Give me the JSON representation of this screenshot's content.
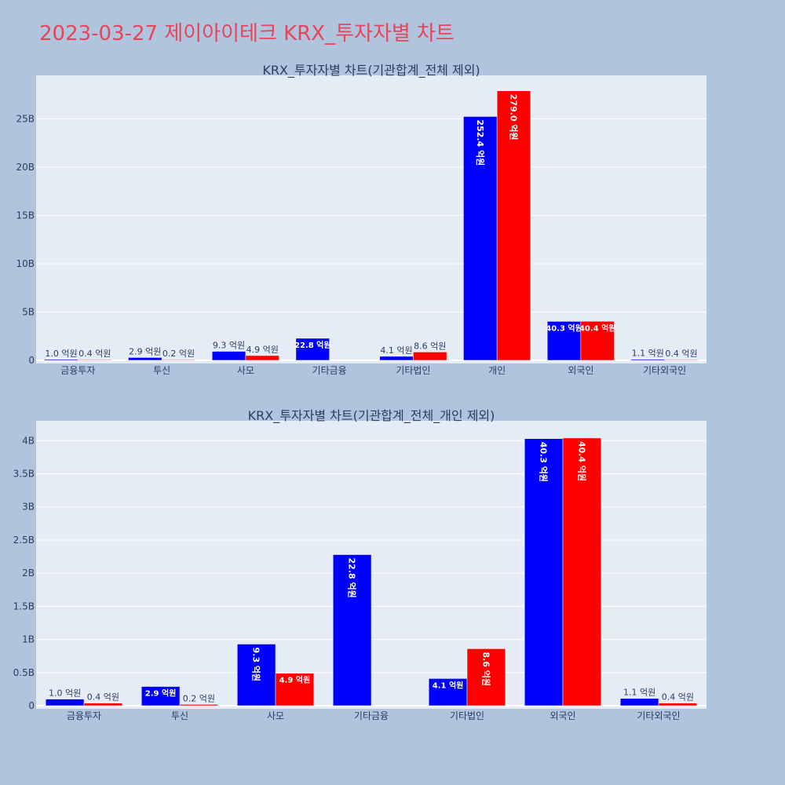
{
  "page": {
    "title": "2023-03-27 제이아이테크 KRX_투자자별 차트"
  },
  "colors": {
    "series_a": "#0000ff",
    "series_b": "#ff0000",
    "plot_bg": "#e5ecf6",
    "page_bg": "#b0c4de",
    "title": "#e8455a"
  },
  "chart_data": [
    {
      "type": "bar",
      "title": "KRX_투자자별 차트(기관합계_전체 제외)",
      "categories": [
        "금융투자",
        "투신",
        "사모",
        "기타금융",
        "기타법인",
        "개인",
        "외국인",
        "기타외국인"
      ],
      "series": [
        {
          "values": [
            100000000,
            290000000,
            930000000,
            2280000000,
            410000000,
            25240000000,
            4030000000,
            110000000
          ],
          "labels": [
            "1.0 억원",
            "2.9 억원",
            "9.3 억원",
            "22.8 억원",
            "4.1 억원",
            "252.4 억원",
            "40.3 억원",
            "1.1 억원"
          ]
        },
        {
          "values": [
            40000000,
            20000000,
            490000000,
            null,
            860000000,
            27900000000,
            4040000000,
            40000000
          ],
          "labels": [
            "0.4 억원",
            "0.2 억원",
            "4.9 억원",
            "",
            "8.6 억원",
            "279.0 억원",
            "40.4 억원",
            "0.4 억원"
          ]
        }
      ],
      "ylim": [
        0,
        29500000000
      ],
      "yticks": [
        0,
        5000000000,
        10000000000,
        15000000000,
        20000000000,
        25000000000
      ],
      "yticklabels": [
        "0",
        "5B",
        "10B",
        "15B",
        "20B",
        "25B"
      ],
      "grid": true
    },
    {
      "type": "bar",
      "title": "KRX_투자자별 차트(기관합계_전체_개인 제외)",
      "categories": [
        "금융투자",
        "투신",
        "사모",
        "기타금융",
        "기타법인",
        "외국인",
        "기타외국인"
      ],
      "series": [
        {
          "values": [
            100000000,
            290000000,
            930000000,
            2280000000,
            410000000,
            4030000000,
            110000000
          ],
          "labels": [
            "1.0 억원",
            "2.9 억원",
            "9.3 억원",
            "22.8 억원",
            "4.1 억원",
            "40.3 억원",
            "1.1 억원"
          ]
        },
        {
          "values": [
            40000000,
            20000000,
            490000000,
            null,
            860000000,
            4040000000,
            40000000
          ],
          "labels": [
            "0.4 억원",
            "0.2 억원",
            "4.9 억원",
            "",
            "8.6 억원",
            "40.4 억원",
            "0.4 억원"
          ]
        }
      ],
      "ylim": [
        0,
        4300000000
      ],
      "yticks": [
        0,
        500000000,
        1000000000,
        1500000000,
        2000000000,
        2500000000,
        3000000000,
        3500000000,
        4000000000
      ],
      "yticklabels": [
        "0",
        "0.5B",
        "1B",
        "1.5B",
        "2B",
        "2.5B",
        "3B",
        "3.5B",
        "4B"
      ],
      "grid": true
    }
  ]
}
